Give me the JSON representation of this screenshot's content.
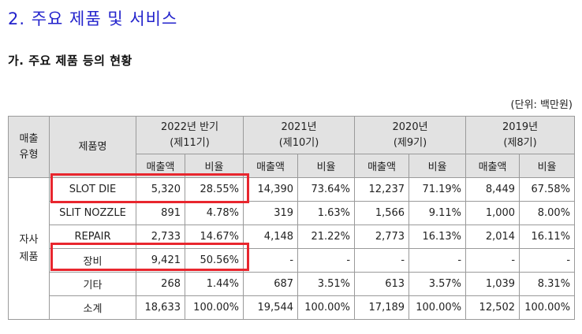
{
  "section_title": "2. 주요 제품 및 서비스",
  "sub_title": "가. 주요 제품 등의 현황",
  "unit": "(단위: 백만원)",
  "table": {
    "type_header": [
      "매출",
      "유형"
    ],
    "name_header": "제품명",
    "periods": [
      {
        "year": "2022년 반기",
        "term": "(제11기)"
      },
      {
        "year": "2021년",
        "term": "(제10기)"
      },
      {
        "year": "2020년",
        "term": "(제9기)"
      },
      {
        "year": "2019년",
        "term": "(제8기)"
      }
    ],
    "sub_headers": {
      "sales": "매출액",
      "ratio": "비율"
    },
    "row_group": [
      "자사",
      "제품"
    ],
    "rows": [
      {
        "name": "SLOT DIE",
        "cells": [
          "5,320",
          "28.55%",
          "14,390",
          "73.64%",
          "12,237",
          "71.19%",
          "8,449",
          "67.58%"
        ]
      },
      {
        "name": "SLIT NOZZLE",
        "cells": [
          "891",
          "4.78%",
          "319",
          "1.63%",
          "1,566",
          "9.11%",
          "1,000",
          "8.00%"
        ]
      },
      {
        "name": "REPAIR",
        "cells": [
          "2,733",
          "14.67%",
          "4,148",
          "21.22%",
          "2,773",
          "16.13%",
          "2,014",
          "16.11%"
        ]
      },
      {
        "name": "장비",
        "cells": [
          "9,421",
          "50.56%",
          "-",
          "-",
          "-",
          "-",
          "-",
          "-"
        ]
      },
      {
        "name": "기타",
        "cells": [
          "268",
          "1.44%",
          "687",
          "3.51%",
          "613",
          "3.57%",
          "1,039",
          "8.31%"
        ]
      },
      {
        "name": "소계",
        "cells": [
          "18,633",
          "100.00%",
          "19,544",
          "100.00%",
          "17,189",
          "100.00%",
          "12,502",
          "100.00%"
        ]
      }
    ]
  },
  "highlight_color": "#e8262e"
}
